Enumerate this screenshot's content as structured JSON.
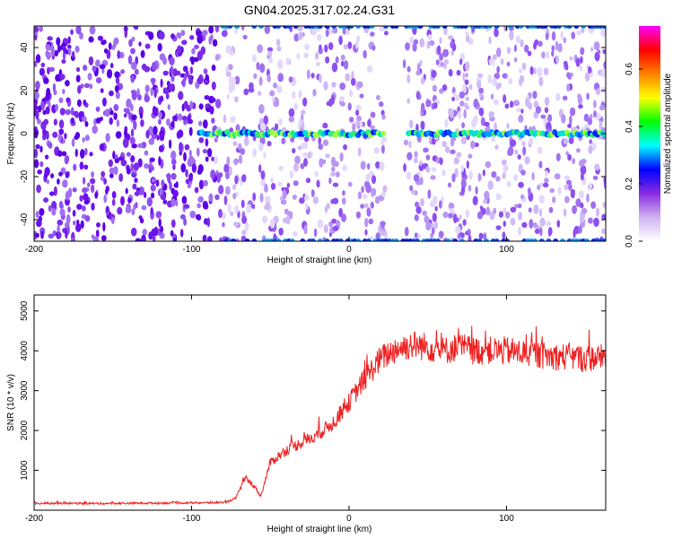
{
  "chart_data": [
    {
      "type": "heatmap",
      "title": "GN04.2025.317.02.24.G31",
      "xlabel": "Height of straight line (km)",
      "ylabel": "Frequency (Hz)",
      "xlim": [
        -200,
        163
      ],
      "ylim": [
        -50,
        50
      ],
      "xticks": [
        -200,
        -100,
        0,
        100
      ],
      "yticks": [
        -40,
        -20,
        0,
        20,
        40
      ],
      "colorbar": {
        "label": "Normalized spectral amplitude",
        "range": [
          0,
          0.75
        ],
        "ticks": [
          0.0,
          0.2,
          0.4,
          0.6
        ],
        "tick_labels": [
          "0.0",
          "0.2",
          "0.4",
          "0.6"
        ],
        "colors": [
          "#ffffff",
          "#cfb2f0",
          "#8a2be2",
          "#0000ff",
          "#00ffff",
          "#00ff00",
          "#ffff00",
          "#ff8000",
          "#ff0000",
          "#ff00ff"
        ]
      },
      "features": {
        "carrier_line_hz": 0,
        "carrier_line_start_km": -95,
        "gap_km": [
          24,
          35
        ],
        "edge_bands_hz": [
          -50,
          50
        ],
        "strong_noise_end_km": -85
      }
    },
    {
      "type": "line",
      "xlabel": "Height of straight line (km)",
      "ylabel": "SNR (10 * v/v)",
      "xlim": [
        -200,
        163
      ],
      "ylim": [
        0,
        5400
      ],
      "xticks": [
        -200,
        -100,
        0,
        100
      ],
      "yticks": [
        1000,
        2000,
        3000,
        4000,
        5000
      ],
      "color": "#ee2020",
      "series": [
        {
          "name": "SNR",
          "x": [
            -200,
            -180,
            -160,
            -140,
            -120,
            -100,
            -85,
            -78,
            -72,
            -66,
            -60,
            -56,
            -50,
            -40,
            -30,
            -20,
            -10,
            0,
            10,
            20,
            30,
            40,
            50,
            60,
            70,
            80,
            90,
            100,
            110,
            120,
            130,
            140,
            150,
            163
          ],
          "y": [
            170,
            175,
            170,
            175,
            180,
            185,
            190,
            200,
            300,
            800,
            600,
            350,
            1200,
            1500,
            1700,
            1900,
            2200,
            2700,
            3300,
            3800,
            4050,
            4150,
            4100,
            4000,
            4100,
            4000,
            4000,
            4000,
            3950,
            3900,
            3850,
            3850,
            3800,
            3850
          ]
        }
      ]
    }
  ]
}
